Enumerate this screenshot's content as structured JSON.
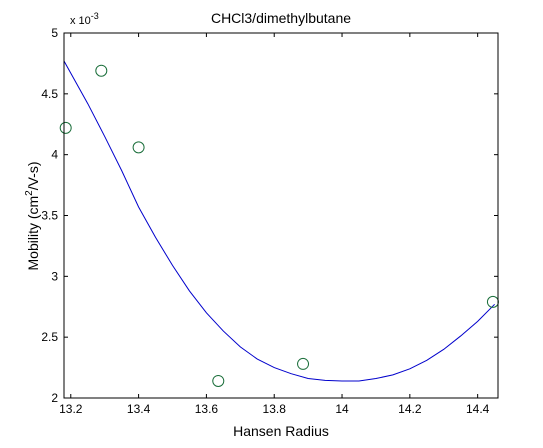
{
  "chart_data": {
    "type": "scatter",
    "title": "CHCl3/dimethylbutane",
    "xlabel": "Hansen Radius",
    "ylabel_prefix": "Mobility (cm",
    "ylabel_sup": "2",
    "ylabel_suffix": "/V-s)",
    "y_multiplier_base": "x 10",
    "y_multiplier_exp": "-3",
    "xlim": [
      13.18,
      14.46
    ],
    "ylim": [
      2.0,
      5.0
    ],
    "x_ticks": [
      "13.2",
      "13.4",
      "13.6",
      "13.8",
      "14",
      "14.2",
      "14.4"
    ],
    "x_tick_values": [
      13.2,
      13.4,
      13.6,
      13.8,
      14.0,
      14.2,
      14.4
    ],
    "y_ticks": [
      "2",
      "2.5",
      "3",
      "3.5",
      "4",
      "4.5",
      "5"
    ],
    "y_tick_values": [
      2.0,
      2.5,
      3.0,
      3.5,
      4.0,
      4.5,
      5.0
    ],
    "grid": false,
    "colors": {
      "points": "#1a6e3a",
      "fit": "#0000cc",
      "axes": "#000000"
    },
    "series": [
      {
        "kind": "points",
        "x": [
          13.185,
          13.29,
          13.4,
          13.635,
          13.885,
          14.445
        ],
        "y": [
          4.22,
          4.69,
          4.06,
          2.14,
          2.28,
          2.79
        ]
      },
      {
        "kind": "fit-curve",
        "x": [
          13.18,
          13.25,
          13.3,
          13.35,
          13.4,
          13.45,
          13.5,
          13.55,
          13.6,
          13.65,
          13.7,
          13.75,
          13.8,
          13.85,
          13.9,
          13.95,
          14.0,
          14.05,
          14.1,
          14.15,
          14.2,
          14.25,
          14.3,
          14.35,
          14.4,
          14.45
        ],
        "y": [
          4.77,
          4.42,
          4.15,
          3.87,
          3.57,
          3.32,
          3.09,
          2.88,
          2.7,
          2.55,
          2.42,
          2.32,
          2.25,
          2.2,
          2.16,
          2.145,
          2.14,
          2.14,
          2.16,
          2.19,
          2.24,
          2.31,
          2.4,
          2.51,
          2.63,
          2.77
        ]
      }
    ]
  }
}
